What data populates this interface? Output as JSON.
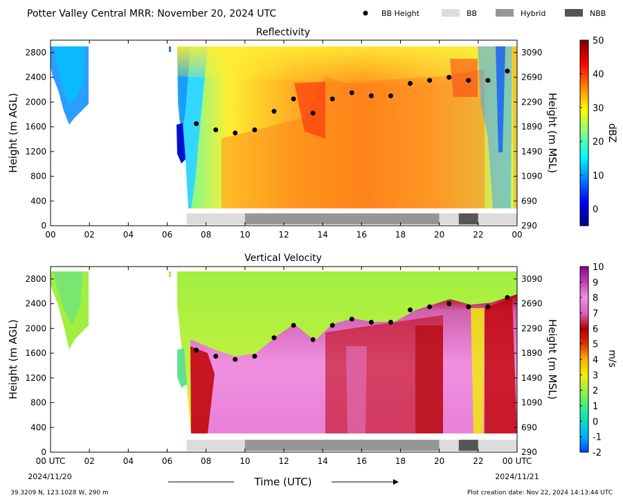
{
  "header": {
    "title": "Potter Valley Central MRR:  November 20, 2024 UTC",
    "legend": [
      {
        "label": "BB Height",
        "kind": "dot",
        "color": "#000000"
      },
      {
        "label": "BB",
        "kind": "box",
        "color": "#dcdcdc"
      },
      {
        "label": "Hybrid",
        "kind": "box",
        "color": "#969696"
      },
      {
        "label": "NBB",
        "kind": "box",
        "color": "#555555"
      }
    ]
  },
  "footer": {
    "location": "39.3209 N, 123.1028 W, 290 m",
    "creation": "Plot creation date: Nov 22, 2024 14:13:44 UTC",
    "xlabel": "Time (UTC)",
    "start_date": "2024/11/20",
    "end_date": "2024/11/21"
  },
  "chart_data": [
    {
      "type": "heatmap",
      "title": "Reflectivity",
      "ylabel_left": "Height (m AGL)",
      "ylabel_right": "Height (m MSL)",
      "colorbar_label": "dBZ",
      "colorbar_range": [
        -5,
        50
      ],
      "colorbar_ticks": [
        "0",
        "10",
        "20",
        "30",
        "40",
        "50"
      ],
      "colorbar_tick_values": [
        0,
        10,
        20,
        30,
        40,
        50
      ],
      "colorbar_colors": [
        "#00007f",
        "#0000ff",
        "#0080ff",
        "#00ffff",
        "#80ff80",
        "#ffff00",
        "#ff8000",
        "#ff0000",
        "#7f0000"
      ],
      "xlim": [
        0,
        24
      ],
      "ylim": [
        0,
        3000
      ],
      "xticks": [
        "00",
        "02",
        "04",
        "06",
        "08",
        "10",
        "12",
        "14",
        "16",
        "18",
        "20",
        "22",
        "00"
      ],
      "yticks_left": [
        "0",
        "400",
        "800",
        "1200",
        "1600",
        "2000",
        "2400",
        "2800"
      ],
      "yticks_left_values": [
        0,
        400,
        800,
        1200,
        1600,
        2000,
        2400,
        2800
      ],
      "yticks_right": [
        "290",
        "690",
        "1090",
        "1490",
        "1890",
        "2290",
        "2690",
        "3090"
      ],
      "bb_height": {
        "x": [
          7.5,
          8.5,
          9.5,
          10.5,
          11.5,
          12.5,
          13.5,
          14.5,
          15.5,
          16.5,
          17.5,
          18.5,
          19.5,
          20.5,
          21.5,
          22.5,
          23.5
        ],
        "y": [
          1650,
          1550,
          1500,
          1550,
          1850,
          2050,
          1820,
          2050,
          2150,
          2100,
          2100,
          2300,
          2350,
          2400,
          2350,
          2350,
          2500
        ]
      }
    },
    {
      "type": "heatmap",
      "title": "Vertical Velocity",
      "ylabel_left": "Height (m AGL)",
      "ylabel_right": "Height (m MSL)",
      "colorbar_label": "m/s",
      "colorbar_range": [
        -2,
        10
      ],
      "colorbar_ticks": [
        "-2",
        "-1",
        "0",
        "1",
        "2",
        "3",
        "4",
        "5",
        "6",
        "7",
        "8",
        "9",
        "10"
      ],
      "colorbar_tick_values": [
        -2,
        -1,
        0,
        1,
        2,
        3,
        4,
        5,
        6,
        7,
        8,
        9,
        10
      ],
      "colorbar_colors": [
        "#0040ff",
        "#00b0ff",
        "#00e0c0",
        "#40f080",
        "#a0f040",
        "#f0f000",
        "#ffb000",
        "#e03000",
        "#b00000",
        "#e060c0",
        "#f090e0",
        "#c040b0",
        "#900090"
      ],
      "xlim": [
        0,
        24
      ],
      "ylim": [
        0,
        3000
      ],
      "xticks": [
        "00 UTC",
        "02",
        "04",
        "06",
        "08",
        "10",
        "12",
        "14",
        "16",
        "18",
        "20",
        "22",
        "00 UTC"
      ],
      "yticks_left": [
        "0",
        "400",
        "800",
        "1200",
        "1600",
        "2000",
        "2400",
        "2800"
      ],
      "yticks_left_values": [
        0,
        400,
        800,
        1200,
        1600,
        2000,
        2400,
        2800
      ],
      "yticks_right": [
        "290",
        "690",
        "1090",
        "1490",
        "1890",
        "2290",
        "2690",
        "3090"
      ],
      "bb_height": {
        "x": [
          7.5,
          8.5,
          9.5,
          10.5,
          11.5,
          12.5,
          13.5,
          14.5,
          15.5,
          16.5,
          17.5,
          18.5,
          19.5,
          20.5,
          21.5,
          22.5,
          23.5
        ],
        "y": [
          1650,
          1550,
          1500,
          1550,
          1850,
          2050,
          1820,
          2050,
          2150,
          2100,
          2100,
          2300,
          2350,
          2400,
          2350,
          2350,
          2500
        ]
      }
    }
  ],
  "bb_type_bar": [
    {
      "start": 7,
      "end": 10,
      "type": "BB"
    },
    {
      "start": 10,
      "end": 20,
      "type": "Hybrid"
    },
    {
      "start": 20,
      "end": 21,
      "type": "BB"
    },
    {
      "start": 21,
      "end": 22,
      "type": "NBB"
    },
    {
      "start": 22,
      "end": 24,
      "type": "BB"
    }
  ]
}
